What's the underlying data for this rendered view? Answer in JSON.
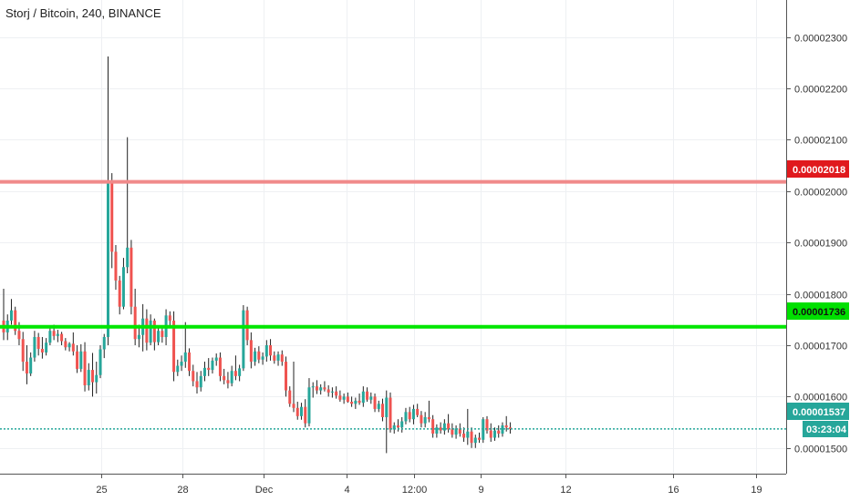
{
  "header": {
    "title": "Storj / Bitcoin, 240, BINANCE"
  },
  "colors": {
    "up": "#26a69a",
    "down": "#ef5350",
    "resistance": "#f08a8a",
    "support": "#00e600",
    "resistance_tag": "#e0191d",
    "support_tag": "#00e000",
    "last_price": "#26a69a",
    "grid": "#eef0f3"
  },
  "price_tags": {
    "resistance": "0.00002018",
    "support": "0.00001736",
    "last_price": "0.00001537",
    "countdown": "03:23:04"
  },
  "chart_data": {
    "type": "candlestick",
    "title": "Storj / Bitcoin, 240, BINANCE",
    "interval": "240",
    "exchange": "BINANCE",
    "ylim": [
      1.45e-05,
      2.372e-05
    ],
    "y_ticks": [
      "0.00002300",
      "0.00002200",
      "0.00002100",
      "0.00002000",
      "0.00001900",
      "0.00001800",
      "0.00001700",
      "0.00001600",
      "0.00001500"
    ],
    "x_ticks": [
      "25",
      "28",
      "Dec",
      "4",
      "12:00",
      "9",
      "12",
      "16",
      "19"
    ],
    "grid": true,
    "horizontal_lines": [
      {
        "name": "resistance",
        "value": 2.018e-05
      },
      {
        "name": "support",
        "value": 1.736e-05
      },
      {
        "name": "last_price",
        "value": 1.537e-05,
        "style": "dotted"
      }
    ],
    "candles": [
      [
        1.748e-05,
        1.81e-05,
        1.71e-05,
        1.725e-05
      ],
      [
        1.725e-05,
        1.76e-05,
        1.71e-05,
        1.748e-05
      ],
      [
        1.748e-05,
        1.79e-05,
        1.74e-05,
        1.768e-05
      ],
      [
        1.768e-05,
        1.775e-05,
        1.72e-05,
        1.728e-05
      ],
      [
        1.728e-05,
        1.745e-05,
        1.7e-05,
        1.712e-05
      ],
      [
        1.712e-05,
        1.726e-05,
        1.65e-05,
        1.668e-05
      ],
      [
        1.668e-05,
        1.7e-05,
        1.624e-05,
        1.645e-05
      ],
      [
        1.645e-05,
        1.686e-05,
        1.64e-05,
        1.676e-05
      ],
      [
        1.676e-05,
        1.728e-05,
        1.668e-05,
        1.716e-05
      ],
      [
        1.716e-05,
        1.724e-05,
        1.68e-05,
        1.693e-05
      ],
      [
        1.693e-05,
        1.716e-05,
        1.674e-05,
        1.686e-05
      ],
      [
        1.686e-05,
        1.714e-05,
        1.68e-05,
        1.705e-05
      ],
      [
        1.705e-05,
        1.735e-05,
        1.7e-05,
        1.728e-05
      ],
      [
        1.728e-05,
        1.74e-05,
        1.71e-05,
        1.718e-05
      ],
      [
        1.718e-05,
        1.73e-05,
        1.706e-05,
        1.722e-05
      ],
      [
        1.722e-05,
        1.726e-05,
        1.7e-05,
        1.708e-05
      ],
      [
        1.708e-05,
        1.714e-05,
        1.69e-05,
        1.696e-05
      ],
      [
        1.696e-05,
        1.706e-05,
        1.688e-05,
        1.703e-05
      ],
      [
        1.703e-05,
        1.725e-05,
        1.68e-05,
        1.688e-05
      ],
      [
        1.688e-05,
        1.7e-05,
        1.646e-05,
        1.654e-05
      ],
      [
        1.654e-05,
        1.702e-05,
        1.648e-05,
        1.688e-05
      ],
      [
        1.688e-05,
        1.706e-05,
        1.61e-05,
        1.622e-05
      ],
      [
        1.622e-05,
        1.665e-05,
        1.612e-05,
        1.652e-05
      ],
      [
        1.652e-05,
        1.685e-05,
        1.6e-05,
        1.628e-05
      ],
      [
        1.628e-05,
        1.668e-05,
        1.606e-05,
        1.642e-05
      ],
      [
        1.642e-05,
        1.7e-05,
        1.636e-05,
        1.692e-05
      ],
      [
        1.692e-05,
        1.722e-05,
        1.675e-05,
        1.716e-05
      ],
      [
        1.716e-05,
        2.262e-05,
        1.7e-05,
        2.018e-05
      ],
      [
        2.018e-05,
        2.035e-05,
        1.85e-05,
        1.882e-05
      ],
      [
        1.882e-05,
        1.895e-05,
        1.808e-05,
        1.826e-05
      ],
      [
        1.826e-05,
        1.835e-05,
        1.76e-05,
        1.775e-05
      ],
      [
        1.775e-05,
        1.87e-05,
        1.77e-05,
        1.852e-05
      ],
      [
        1.852e-05,
        2.105e-05,
        1.84e-05,
        1.89e-05
      ],
      [
        1.89e-05,
        1.905e-05,
        1.76e-05,
        1.775e-05
      ],
      [
        1.775e-05,
        1.81e-05,
        1.7e-05,
        1.712e-05
      ],
      [
        1.712e-05,
        1.74e-05,
        1.696e-05,
        1.72e-05
      ],
      [
        1.72e-05,
        1.78e-05,
        1.688e-05,
        1.752e-05
      ],
      [
        1.752e-05,
        1.77e-05,
        1.69e-05,
        1.705e-05
      ],
      [
        1.705e-05,
        1.76e-05,
        1.7e-05,
        1.748e-05
      ],
      [
        1.748e-05,
        1.752e-05,
        1.69e-05,
        1.706e-05
      ],
      [
        1.706e-05,
        1.734e-05,
        1.7e-05,
        1.728e-05
      ],
      [
        1.728e-05,
        1.738e-05,
        1.705e-05,
        1.716e-05
      ],
      [
        1.716e-05,
        1.77e-05,
        1.7e-05,
        1.758e-05
      ],
      [
        1.758e-05,
        1.766e-05,
        1.738e-05,
        1.748e-05
      ],
      [
        1.748e-05,
        1.766e-05,
        1.63e-05,
        1.648e-05
      ],
      [
        1.648e-05,
        1.672e-05,
        1.64e-05,
        1.66e-05
      ],
      [
        1.66e-05,
        1.68e-05,
        1.65e-05,
        1.668e-05
      ],
      [
        1.668e-05,
        1.745e-05,
        1.656e-05,
        1.686e-05
      ],
      [
        1.686e-05,
        1.694e-05,
        1.64e-05,
        1.65e-05
      ],
      [
        1.65e-05,
        1.662e-05,
        1.62e-05,
        1.63e-05
      ],
      [
        1.63e-05,
        1.648e-05,
        1.606e-05,
        1.618e-05
      ],
      [
        1.618e-05,
        1.65e-05,
        1.61e-05,
        1.64e-05
      ],
      [
        1.64e-05,
        1.668e-05,
        1.63e-05,
        1.656e-05
      ],
      [
        1.656e-05,
        1.675e-05,
        1.64e-05,
        1.652e-05
      ],
      [
        1.652e-05,
        1.676e-05,
        1.645e-05,
        1.67e-05
      ],
      [
        1.67e-05,
        1.684e-05,
        1.66e-05,
        1.676e-05
      ],
      [
        1.676e-05,
        1.686e-05,
        1.63e-05,
        1.64e-05
      ],
      [
        1.64e-05,
        1.654e-05,
        1.624e-05,
        1.632e-05
      ],
      [
        1.632e-05,
        1.648e-05,
        1.616e-05,
        1.626e-05
      ],
      [
        1.626e-05,
        1.66e-05,
        1.62e-05,
        1.65e-05
      ],
      [
        1.65e-05,
        1.68e-05,
        1.632e-05,
        1.64e-05
      ],
      [
        1.64e-05,
        1.662e-05,
        1.63e-05,
        1.655e-05
      ],
      [
        1.655e-05,
        1.778e-05,
        1.65e-05,
        1.768e-05
      ],
      [
        1.768e-05,
        1.775e-05,
        1.7e-05,
        1.71e-05
      ],
      [
        1.71e-05,
        1.725e-05,
        1.655e-05,
        1.668e-05
      ],
      [
        1.668e-05,
        1.695e-05,
        1.66e-05,
        1.688e-05
      ],
      [
        1.688e-05,
        1.698e-05,
        1.665e-05,
        1.672e-05
      ],
      [
        1.672e-05,
        1.686e-05,
        1.662e-05,
        1.678e-05
      ],
      [
        1.678e-05,
        1.71e-05,
        1.668e-05,
        1.7e-05
      ],
      [
        1.7e-05,
        1.712e-05,
        1.67e-05,
        1.68e-05
      ],
      [
        1.68e-05,
        1.688e-05,
        1.664e-05,
        1.67e-05
      ],
      [
        1.67e-05,
        1.688e-05,
        1.66e-05,
        1.682e-05
      ],
      [
        1.682e-05,
        1.69e-05,
        1.66e-05,
        1.668e-05
      ],
      [
        1.668e-05,
        1.678e-05,
        1.6e-05,
        1.612e-05
      ],
      [
        1.612e-05,
        1.62e-05,
        1.58e-05,
        1.586e-05
      ],
      [
        1.586e-05,
        1.668e-05,
        1.57e-05,
        1.578e-05
      ],
      [
        1.578e-05,
        1.59e-05,
        1.555e-05,
        1.562e-05
      ],
      [
        1.562e-05,
        1.588e-05,
        1.555e-05,
        1.58e-05
      ],
      [
        1.58e-05,
        1.595e-05,
        1.54e-05,
        1.548e-05
      ],
      [
        1.548e-05,
        1.636e-05,
        1.542e-05,
        1.618e-05
      ],
      [
        1.618e-05,
        1.628e-05,
        1.598e-05,
        1.62e-05
      ],
      [
        1.62e-05,
        1.632e-05,
        1.605e-05,
        1.612e-05
      ],
      [
        1.612e-05,
        1.624e-05,
        1.604e-05,
        1.618e-05
      ],
      [
        1.618e-05,
        1.63e-05,
        1.61e-05,
        1.614e-05
      ],
      [
        1.614e-05,
        1.622e-05,
        1.6e-05,
        1.608e-05
      ],
      [
        1.608e-05,
        1.618e-05,
        1.598e-05,
        1.61e-05
      ],
      [
        1.61e-05,
        1.62e-05,
        1.596e-05,
        1.602e-05
      ],
      [
        1.602e-05,
        1.612e-05,
        1.59e-05,
        1.594e-05
      ],
      [
        1.594e-05,
        1.606e-05,
        1.586e-05,
        1.6e-05
      ],
      [
        1.6e-05,
        1.608e-05,
        1.588e-05,
        1.59e-05
      ],
      [
        1.59e-05,
        1.6e-05,
        1.58e-05,
        1.586e-05
      ],
      [
        1.586e-05,
        1.598e-05,
        1.576e-05,
        1.592e-05
      ],
      [
        1.592e-05,
        1.606e-05,
        1.584e-05,
        1.588e-05
      ],
      [
        1.588e-05,
        1.62e-05,
        1.58e-05,
        1.61e-05
      ],
      [
        1.61e-05,
        1.618e-05,
        1.59e-05,
        1.594e-05
      ],
      [
        1.594e-05,
        1.608e-05,
        1.586e-05,
        1.6e-05
      ],
      [
        1.6e-05,
        1.606e-05,
        1.57e-05,
        1.576e-05
      ],
      [
        1.576e-05,
        1.592e-05,
        1.57e-05,
        1.586e-05
      ],
      [
        1.586e-05,
        1.596e-05,
        1.552e-05,
        1.56e-05
      ],
      [
        1.56e-05,
        1.612e-05,
        1.49e-05,
        1.598e-05
      ],
      [
        1.598e-05,
        1.608e-05,
        1.53e-05,
        1.536e-05
      ],
      [
        1.536e-05,
        1.55e-05,
        1.528e-05,
        1.544e-05
      ],
      [
        1.544e-05,
        1.556e-05,
        1.532e-05,
        1.54e-05
      ],
      [
        1.54e-05,
        1.56e-05,
        1.53e-05,
        1.552e-05
      ],
      [
        1.552e-05,
        1.578e-05,
        1.546e-05,
        1.57e-05
      ],
      [
        1.57e-05,
        1.58e-05,
        1.55e-05,
        1.556e-05
      ],
      [
        1.556e-05,
        1.584e-05,
        1.546e-05,
        1.576e-05
      ],
      [
        1.576e-05,
        1.586e-05,
        1.56e-05,
        1.564e-05
      ],
      [
        1.564e-05,
        1.572e-05,
        1.54e-05,
        1.548e-05
      ],
      [
        1.548e-05,
        1.57e-05,
        1.54e-05,
        1.56e-05
      ],
      [
        1.56e-05,
        1.592e-05,
        1.55e-05,
        1.556e-05
      ],
      [
        1.556e-05,
        1.564e-05,
        1.52e-05,
        1.528e-05
      ],
      [
        1.528e-05,
        1.546e-05,
        1.52e-05,
        1.54e-05
      ],
      [
        1.54e-05,
        1.55e-05,
        1.528e-05,
        1.534e-05
      ],
      [
        1.534e-05,
        1.556e-05,
        1.526e-05,
        1.548e-05
      ],
      [
        1.548e-05,
        1.566e-05,
        1.53e-05,
        1.536e-05
      ],
      [
        1.536e-05,
        1.548e-05,
        1.52e-05,
        1.526e-05
      ],
      [
        1.526e-05,
        1.544e-05,
        1.518e-05,
        1.538e-05
      ],
      [
        1.538e-05,
        1.548e-05,
        1.522e-05,
        1.528e-05
      ],
      [
        1.528e-05,
        1.54e-05,
        1.512e-05,
        1.52e-05
      ],
      [
        1.52e-05,
        1.576e-05,
        1.506e-05,
        1.532e-05
      ],
      [
        1.532e-05,
        1.54e-05,
        1.5e-05,
        1.51e-05
      ],
      [
        1.51e-05,
        1.526e-05,
        1.5e-05,
        1.52e-05
      ],
      [
        1.52e-05,
        1.53e-05,
        1.51e-05,
        1.516e-05
      ],
      [
        1.516e-05,
        1.56e-05,
        1.51e-05,
        1.556e-05
      ],
      [
        1.556e-05,
        1.562e-05,
        1.528e-05,
        1.534e-05
      ],
      [
        1.534e-05,
        1.548e-05,
        1.512e-05,
        1.52e-05
      ],
      [
        1.52e-05,
        1.54e-05,
        1.514e-05,
        1.534e-05
      ],
      [
        1.534e-05,
        1.544e-05,
        1.52e-05,
        1.528e-05
      ],
      [
        1.528e-05,
        1.55e-05,
        1.522e-05,
        1.544e-05
      ],
      [
        1.544e-05,
        1.562e-05,
        1.532e-05,
        1.54e-05
      ],
      [
        1.54e-05,
        1.55e-05,
        1.528e-05,
        1.537e-05
      ]
    ]
  }
}
